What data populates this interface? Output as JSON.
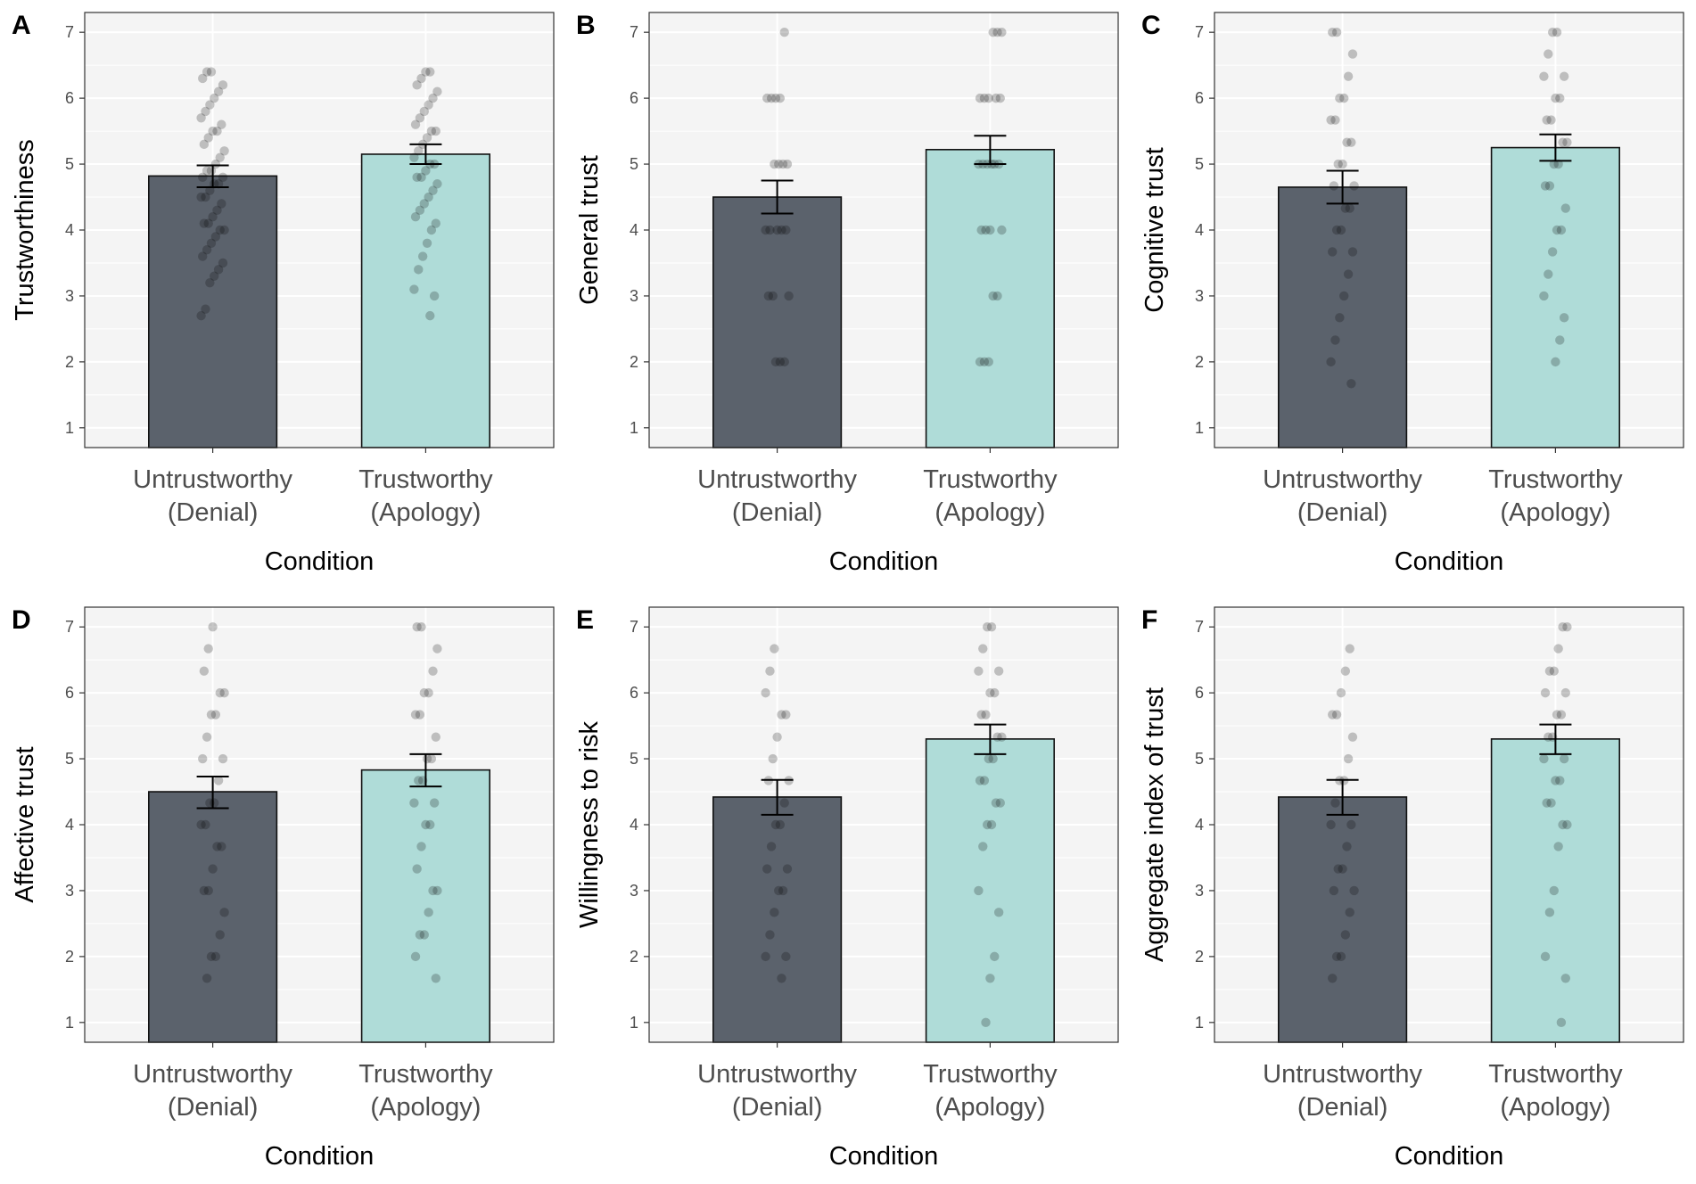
{
  "colors": {
    "panel_bg": "#f4f4f4",
    "grid": "#ffffff",
    "bar_untrustworthy": "#5b626c",
    "bar_trustworthy": "#afdcd8",
    "bar_outline": "#111111",
    "point": "#000000",
    "axis_text": "#4d4d4d",
    "title_text": "#000000"
  },
  "chart_data": [
    {
      "panel_label": "A",
      "type": "bar",
      "ylabel": "Trustworthiness",
      "xlabel": "Condition",
      "categories": [
        [
          "Untrustworthy",
          "(Denial)"
        ],
        [
          "Trustworthy",
          "(Apology)"
        ]
      ],
      "values": [
        4.82,
        5.15
      ],
      "error": [
        [
          4.65,
          4.98
        ],
        [
          5.0,
          5.3
        ]
      ],
      "ylim": [
        0.7,
        7.3
      ],
      "yticks": [
        1,
        2,
        3,
        4,
        5,
        6,
        7
      ],
      "points": [
        [
          2.7,
          2.8,
          3.2,
          3.3,
          3.4,
          3.5,
          3.6,
          3.7,
          3.8,
          3.9,
          4.0,
          4.0,
          4.1,
          4.1,
          4.2,
          4.3,
          4.4,
          4.5,
          4.5,
          4.6,
          4.7,
          4.7,
          4.8,
          4.8,
          4.9,
          4.9,
          5.0,
          5.1,
          5.2,
          5.3,
          5.4,
          5.5,
          5.5,
          5.6,
          5.7,
          5.8,
          5.9,
          6.0,
          6.1,
          6.2,
          6.3,
          6.4,
          6.4
        ],
        [
          2.7,
          3.0,
          3.1,
          3.4,
          3.6,
          3.8,
          4.0,
          4.1,
          4.2,
          4.3,
          4.4,
          4.5,
          4.6,
          4.7,
          4.8,
          4.8,
          4.9,
          5.0,
          5.0,
          5.1,
          5.2,
          5.3,
          5.4,
          5.5,
          5.5,
          5.6,
          5.7,
          5.8,
          5.9,
          6.0,
          6.1,
          6.2,
          6.3,
          6.4,
          6.4
        ]
      ]
    },
    {
      "panel_label": "B",
      "type": "bar",
      "ylabel": "General trust",
      "xlabel": "Condition",
      "categories": [
        [
          "Untrustworthy",
          "(Denial)"
        ],
        [
          "Trustworthy",
          "(Apology)"
        ]
      ],
      "values": [
        4.5,
        5.22
      ],
      "error": [
        [
          4.25,
          4.75
        ],
        [
          5.0,
          5.43
        ]
      ],
      "ylim": [
        0.7,
        7.3
      ],
      "yticks": [
        1,
        2,
        3,
        4,
        5,
        6,
        7
      ],
      "points": [
        [
          2,
          2,
          2,
          3,
          3,
          3,
          4,
          4,
          4,
          4,
          4,
          5,
          5,
          5,
          5,
          6,
          6,
          6,
          6,
          7
        ],
        [
          2,
          2,
          2,
          3,
          3,
          4,
          4,
          4,
          4,
          5,
          5,
          5,
          5,
          5,
          5,
          6,
          6,
          6,
          6,
          6,
          7,
          7,
          7
        ]
      ]
    },
    {
      "panel_label": "C",
      "type": "bar",
      "ylabel": "Cognitive trust",
      "xlabel": "Condition",
      "categories": [
        [
          "Untrustworthy",
          "(Denial)"
        ],
        [
          "Trustworthy",
          "(Apology)"
        ]
      ],
      "values": [
        4.65,
        5.25
      ],
      "error": [
        [
          4.4,
          4.9
        ],
        [
          5.05,
          5.45
        ]
      ],
      "ylim": [
        0.7,
        7.3
      ],
      "yticks": [
        1,
        2,
        3,
        4,
        5,
        6,
        7
      ],
      "points": [
        [
          1.67,
          2.0,
          2.33,
          2.67,
          3.0,
          3.33,
          3.67,
          3.67,
          4.0,
          4.0,
          4.33,
          4.33,
          4.67,
          4.67,
          5.0,
          5.0,
          5.33,
          5.33,
          5.67,
          5.67,
          6.0,
          6.0,
          6.33,
          6.67,
          7.0,
          7.0
        ],
        [
          2.0,
          2.33,
          2.67,
          3.0,
          3.33,
          3.67,
          4.0,
          4.0,
          4.33,
          4.67,
          4.67,
          5.0,
          5.0,
          5.33,
          5.33,
          5.67,
          5.67,
          6.0,
          6.0,
          6.33,
          6.33,
          6.67,
          7.0,
          7.0
        ]
      ]
    },
    {
      "panel_label": "D",
      "type": "bar",
      "ylabel": "Affective trust",
      "xlabel": "Condition",
      "categories": [
        [
          "Untrustworthy",
          "(Denial)"
        ],
        [
          "Trustworthy",
          "(Apology)"
        ]
      ],
      "values": [
        4.5,
        4.83
      ],
      "error": [
        [
          4.25,
          4.73
        ],
        [
          4.58,
          5.07
        ]
      ],
      "ylim": [
        0.7,
        7.3
      ],
      "yticks": [
        1,
        2,
        3,
        4,
        5,
        6,
        7
      ],
      "points": [
        [
          1.67,
          2.0,
          2.0,
          2.33,
          2.67,
          3.0,
          3.0,
          3.33,
          3.67,
          3.67,
          4.0,
          4.0,
          4.33,
          4.33,
          4.67,
          5.0,
          5.0,
          5.33,
          5.67,
          5.67,
          6.0,
          6.0,
          6.33,
          6.67,
          7.0
        ],
        [
          1.67,
          2.0,
          2.33,
          2.33,
          2.67,
          3.0,
          3.0,
          3.33,
          3.67,
          4.0,
          4.0,
          4.33,
          4.33,
          4.67,
          4.67,
          5.0,
          5.0,
          5.33,
          5.67,
          5.67,
          6.0,
          6.0,
          6.33,
          6.67,
          7.0,
          7.0
        ]
      ]
    },
    {
      "panel_label": "E",
      "type": "bar",
      "ylabel": "Willingness to risk",
      "xlabel": "Condition",
      "categories": [
        [
          "Untrustworthy",
          "(Denial)"
        ],
        [
          "Trustworthy",
          "(Apology)"
        ]
      ],
      "values": [
        4.42,
        5.3
      ],
      "error": [
        [
          4.15,
          4.68
        ],
        [
          5.07,
          5.52
        ]
      ],
      "ylim": [
        0.7,
        7.3
      ],
      "yticks": [
        1,
        2,
        3,
        4,
        5,
        6,
        7
      ],
      "points": [
        [
          1.67,
          2.0,
          2.0,
          2.33,
          2.67,
          3.0,
          3.0,
          3.33,
          3.33,
          3.67,
          4.0,
          4.0,
          4.33,
          4.67,
          4.67,
          5.0,
          5.33,
          5.67,
          5.67,
          6.0,
          6.33,
          6.67
        ],
        [
          1.0,
          1.67,
          2.0,
          2.67,
          3.0,
          3.67,
          4.0,
          4.0,
          4.33,
          4.33,
          4.67,
          4.67,
          5.0,
          5.0,
          5.33,
          5.33,
          5.67,
          5.67,
          6.0,
          6.0,
          6.33,
          6.33,
          6.67,
          7.0,
          7.0
        ]
      ]
    },
    {
      "panel_label": "F",
      "type": "bar",
      "ylabel": "Aggregate index of trust",
      "xlabel": "Condition",
      "categories": [
        [
          "Untrustworthy",
          "(Denial)"
        ],
        [
          "Trustworthy",
          "(Apology)"
        ]
      ],
      "values": [
        4.42,
        5.3
      ],
      "error": [
        [
          4.15,
          4.68
        ],
        [
          5.07,
          5.52
        ]
      ],
      "ylim": [
        0.7,
        7.3
      ],
      "yticks": [
        1,
        2,
        3,
        4,
        5,
        6,
        7
      ],
      "points": [
        [
          1.67,
          2.0,
          2.0,
          2.33,
          2.67,
          3.0,
          3.0,
          3.33,
          3.33,
          3.67,
          4.0,
          4.0,
          4.33,
          4.67,
          4.67,
          5.0,
          5.33,
          5.67,
          5.67,
          6.0,
          6.33,
          6.67
        ],
        [
          1.0,
          1.67,
          2.0,
          2.67,
          3.0,
          3.67,
          4.0,
          4.0,
          4.33,
          4.33,
          4.67,
          4.67,
          5.0,
          5.0,
          5.33,
          5.33,
          5.67,
          5.67,
          6.0,
          6.0,
          6.33,
          6.33,
          6.67,
          7.0,
          7.0
        ]
      ]
    }
  ]
}
